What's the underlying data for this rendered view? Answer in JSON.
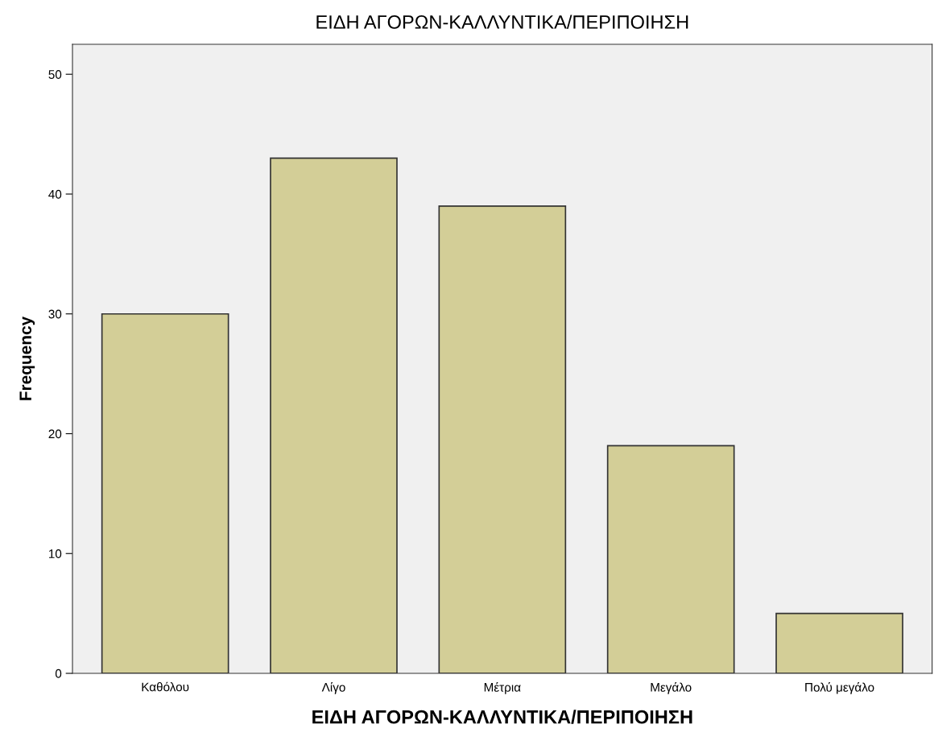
{
  "chart_data": {
    "type": "bar",
    "title": "ΕΙΔΗ ΑΓΟΡΩΝ-ΚΑΛΛΥΝΤΙΚΑ/ΠΕΡΙΠΟΙΗΣΗ",
    "xlabel": "ΕΙΔΗ ΑΓΟΡΩΝ-ΚΑΛΛΥΝΤΙΚΑ/ΠΕΡΙΠΟΙΗΣΗ",
    "ylabel": "Frequency",
    "categories": [
      "Καθόλου",
      "Λίγο",
      "Μέτρια",
      "Μεγάλο",
      "Πολύ μεγάλο"
    ],
    "values": [
      30,
      43,
      39,
      19,
      5
    ],
    "color": "#d3ce97",
    "ylim": [
      0,
      52.5
    ],
    "yticks": [
      0,
      10,
      20,
      30,
      40,
      50
    ],
    "grid": false
  }
}
